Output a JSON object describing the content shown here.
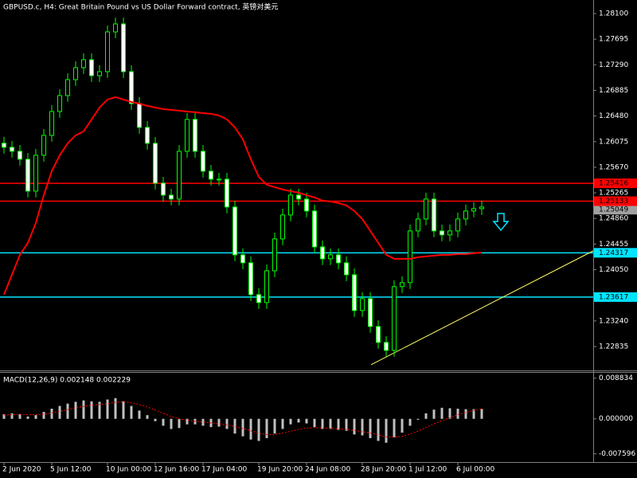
{
  "chart_data": [
    {
      "type": "candlestick",
      "title": "GBPUSD.c, H4:  Great Britain Pound vs US Dollar Forward contract, 英镑对美元",
      "categories": [
        "2 Jun 2020",
        null,
        null,
        null,
        null,
        null,
        "5 Jun 12:00",
        null,
        null,
        null,
        null,
        null,
        null,
        "10 Jun 00:00",
        null,
        null,
        null,
        null,
        null,
        "12 Jun 16:00",
        null,
        null,
        null,
        null,
        null,
        "17 Jun 04:00",
        null,
        null,
        null,
        null,
        null,
        null,
        "19 Jun 20:00",
        null,
        null,
        null,
        null,
        null,
        "24 Jun 08:00",
        null,
        null,
        null,
        null,
        null,
        null,
        "28 Jun 20:00",
        null,
        null,
        null,
        null,
        null,
        "1 Jul 12:00",
        null,
        null,
        null,
        null,
        null,
        "6 Jul 00:00",
        null,
        null,
        null
      ],
      "open": [
        1.2605,
        1.25985,
        1.25922,
        1.25796,
        1.25292,
        1.25859,
        1.26174,
        1.26551,
        1.26803,
        1.27055,
        1.27244,
        1.2737,
        1.27118,
        1.27181,
        1.2781,
        1.27936,
        1.27181,
        1.26677,
        1.263,
        1.26048,
        1.25418,
        1.25229,
        1.25167,
        1.25922,
        1.26426,
        1.25922,
        1.25607,
        1.25481,
        1.25481,
        1.25041,
        1.24285,
        1.24159,
        1.23656,
        1.2353,
        1.24033,
        1.24537,
        1.24915,
        1.25229,
        1.25167,
        1.24978,
        1.24411,
        1.24222,
        1.24285,
        1.24159,
        1.2397,
        1.23404,
        1.23593,
        1.23152,
        1.229,
        1.22774,
        1.23782,
        1.23845,
        1.24663,
        1.24852,
        1.25167,
        1.24663,
        1.246,
        1.24663,
        1.24852,
        1.24978,
        1.25015
      ],
      "high": [
        1.2615,
        1.26085,
        1.26022,
        1.25896,
        1.25959,
        1.26274,
        1.26651,
        1.26903,
        1.27155,
        1.27344,
        1.2747,
        1.2747,
        1.27281,
        1.2791,
        1.28036,
        1.28036,
        1.27281,
        1.26777,
        1.264,
        1.26148,
        1.25518,
        1.25329,
        1.26022,
        1.26526,
        1.26526,
        1.26022,
        1.25707,
        1.25581,
        1.25581,
        1.25141,
        1.24385,
        1.24259,
        1.23756,
        1.24133,
        1.24637,
        1.25015,
        1.25329,
        1.25329,
        1.25267,
        1.25078,
        1.24511,
        1.24385,
        1.24385,
        1.24259,
        1.2407,
        1.23693,
        1.23693,
        1.23252,
        1.23,
        1.23882,
        1.23945,
        1.24763,
        1.24952,
        1.25267,
        1.25267,
        1.24763,
        1.24763,
        1.24952,
        1.25078,
        1.25115,
        1.25141
      ],
      "low": [
        1.25885,
        1.25822,
        1.25696,
        1.25192,
        1.25192,
        1.25759,
        1.26074,
        1.26451,
        1.26703,
        1.26955,
        1.27144,
        1.27018,
        1.27018,
        1.27081,
        1.2771,
        1.27081,
        1.26577,
        1.262,
        1.25948,
        1.25318,
        1.25129,
        1.25067,
        1.25067,
        1.25822,
        1.25822,
        1.25507,
        1.25381,
        1.25381,
        1.24941,
        1.24185,
        1.24059,
        1.23556,
        1.2343,
        1.2343,
        1.23933,
        1.24437,
        1.24815,
        1.25067,
        1.24878,
        1.24311,
        1.24122,
        1.24122,
        1.24059,
        1.2387,
        1.23304,
        1.23304,
        1.23052,
        1.228,
        1.22674,
        1.22674,
        1.23682,
        1.23745,
        1.24563,
        1.24752,
        1.24563,
        1.245,
        1.245,
        1.24563,
        1.24752,
        1.24878,
        1.24915
      ],
      "close": [
        1.25985,
        1.25922,
        1.25796,
        1.25292,
        1.25859,
        1.26174,
        1.26551,
        1.26803,
        1.27055,
        1.27244,
        1.2737,
        1.27118,
        1.27181,
        1.2781,
        1.27936,
        1.27181,
        1.26677,
        1.263,
        1.26048,
        1.25418,
        1.25229,
        1.25167,
        1.25922,
        1.26426,
        1.25922,
        1.25607,
        1.25481,
        1.25481,
        1.25041,
        1.24285,
        1.24159,
        1.23656,
        1.2353,
        1.24033,
        1.24537,
        1.24915,
        1.25229,
        1.25167,
        1.24978,
        1.24411,
        1.24222,
        1.24285,
        1.24159,
        1.2397,
        1.23404,
        1.23593,
        1.23152,
        1.229,
        1.22774,
        1.23782,
        1.23845,
        1.24663,
        1.24852,
        1.25167,
        1.24663,
        1.246,
        1.24663,
        1.24852,
        1.24978,
        1.25015,
        1.25041
      ],
      "color": "#00ff00",
      "bull_fill": "#000000",
      "bear_fill": "#ffffff",
      "moving_average": {
        "color": "#ff0000",
        "values": [
          1.23656,
          1.2397,
          1.24285,
          1.24474,
          1.24789,
          1.25229,
          1.25607,
          1.25859,
          1.26048,
          1.26174,
          1.26237,
          1.26426,
          1.26614,
          1.2674,
          1.26778,
          1.2674,
          1.26702,
          1.26677,
          1.2664,
          1.26614,
          1.26589,
          1.26577,
          1.26564,
          1.26551,
          1.26539,
          1.26526,
          1.26514,
          1.26488,
          1.26426,
          1.263,
          1.26111,
          1.25796,
          1.25519,
          1.25393,
          1.25355,
          1.25318,
          1.25292,
          1.25267,
          1.25229,
          1.25192,
          1.25141,
          1.25129,
          1.25104,
          1.25066,
          1.24978,
          1.24852,
          1.24663,
          1.24474,
          1.24285,
          1.24222,
          1.24222,
          1.24222,
          1.24247,
          1.2426,
          1.24273,
          1.24285,
          1.24285,
          1.24298,
          1.24298,
          1.2431,
          1.24323
        ]
      },
      "hlines": [
        {
          "value": 1.25416,
          "label": "1.25416",
          "color": "#ff0000"
        },
        {
          "value": 1.25133,
          "label": "1.25133",
          "color": "#ff0000"
        },
        {
          "value": 1.24317,
          "label": "1.24317",
          "color": "#00e5ff"
        },
        {
          "value": 1.23617,
          "label": "1.23617",
          "color": "#00e5ff"
        }
      ],
      "price_label": {
        "value": 1.25049,
        "label": "1.25049",
        "color": "#a0a0a0"
      },
      "trendline": {
        "color": "#ffff66",
        "points": [
          [
            46.1,
            1.22548
          ],
          [
            74,
            1.24348
          ]
        ]
      },
      "ylim": [
        1.22457,
        1.28314
      ],
      "yticks": [
        {
          "value": 1.281,
          "label": "1.28100"
        },
        1.27695,
        {
          "value": 1.2729,
          "label": "1.27290"
        },
        1.26885,
        {
          "value": 1.2648,
          "label": "1.26480"
        },
        1.26075,
        {
          "value": 1.2567,
          "label": "1.25670"
        },
        1.25265,
        {
          "value": 1.2486,
          "label": "1.24860"
        },
        1.24455,
        {
          "value": 1.2405,
          "label": "1.24050"
        },
        {
          "value": 1.2324,
          "label": "1.23240"
        },
        1.22835
      ]
    },
    {
      "type": "macd",
      "title": "MACD(12,26,9) 0.002148 0.002229",
      "histogram": {
        "color": "#c0c0c0",
        "values": [
          0.001,
          0.0012,
          0.001,
          0.0005,
          0.0008,
          0.0015,
          0.0022,
          0.0028,
          0.0033,
          0.0037,
          0.004,
          0.0038,
          0.0037,
          0.0042,
          0.0045,
          0.0038,
          0.0028,
          0.0018,
          0.0008,
          -0.0005,
          -0.0015,
          -0.0022,
          -0.002,
          -0.0012,
          -0.0012,
          -0.0015,
          -0.0018,
          -0.0017,
          -0.0022,
          -0.0032,
          -0.0038,
          -0.0045,
          -0.0048,
          -0.0042,
          -0.0032,
          -0.0022,
          -0.0012,
          -0.0008,
          -0.001,
          -0.0018,
          -0.0022,
          -0.0022,
          -0.0024,
          -0.0026,
          -0.0034,
          -0.0036,
          -0.0042,
          -0.0048,
          -0.0052,
          -0.004,
          -0.003,
          -0.0015,
          -0.0002,
          0.0012,
          0.002,
          0.0024,
          0.0023,
          0.0022,
          0.0021,
          0.0021,
          0.002148
        ]
      },
      "signal": {
        "color": "#ff0000",
        "values": [
          0.0008,
          0.0009,
          0.001,
          0.0009,
          0.0009,
          0.001,
          0.0013,
          0.0016,
          0.002,
          0.0024,
          0.0027,
          0.003,
          0.0031,
          0.0033,
          0.0036,
          0.0037,
          0.0035,
          0.0031,
          0.0026,
          0.0019,
          0.0012,
          0.0005,
          0.0,
          -0.0003,
          -0.0005,
          -0.0007,
          -0.0009,
          -0.0011,
          -0.0013,
          -0.0017,
          -0.0021,
          -0.0026,
          -0.0031,
          -0.0034,
          -0.0034,
          -0.0031,
          -0.0027,
          -0.0023,
          -0.002,
          -0.0019,
          -0.002,
          -0.0021,
          -0.0022,
          -0.0023,
          -0.0025,
          -0.0028,
          -0.0031,
          -0.0035,
          -0.0039,
          -0.004,
          -0.0038,
          -0.0033,
          -0.0027,
          -0.0019,
          -0.0011,
          -0.0004,
          0.0002,
          0.0009,
          0.0014,
          0.0018,
          0.002229
        ]
      },
      "ylim": [
        -0.0094,
        0.01
      ],
      "yticks": [
        0.008834,
        {
          "value": 0,
          "label": "0.000000"
        },
        -0.007596
      ]
    }
  ]
}
